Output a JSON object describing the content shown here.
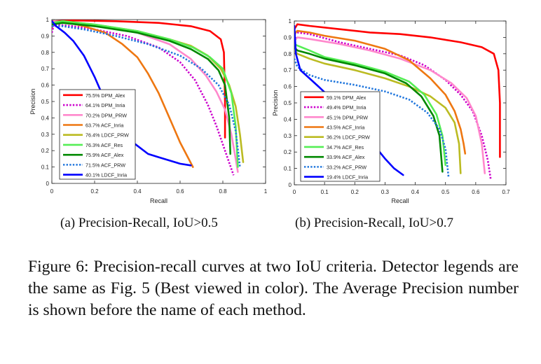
{
  "chart_data": [
    {
      "type": "line",
      "xlabel": "Recall",
      "ylabel": "Precision",
      "xlim": [
        0,
        1
      ],
      "ylim": [
        0,
        1
      ],
      "xticks": [
        "0",
        "0.2",
        "0.4",
        "0.6",
        "0.8",
        "1"
      ],
      "yticks": [
        "0",
        "0.1",
        "0.2",
        "0.3",
        "0.4",
        "0.5",
        "0.6",
        "0.7",
        "0.8",
        "0.9",
        "1"
      ],
      "legend_position": "bottom-left",
      "series": [
        {
          "name": "75.5% DPM_Alex",
          "color": "#ff0000",
          "dash": "solid",
          "points": [
            [
              0,
              0.95
            ],
            [
              0.005,
              0.99
            ],
            [
              0.1,
              0.995
            ],
            [
              0.3,
              0.99
            ],
            [
              0.5,
              0.98
            ],
            [
              0.65,
              0.96
            ],
            [
              0.74,
              0.93
            ],
            [
              0.79,
              0.88
            ],
            [
              0.805,
              0.8
            ],
            [
              0.81,
              0.5
            ],
            [
              0.81,
              0.28
            ]
          ]
        },
        {
          "name": "64.1% DPM_Inria",
          "color": "#cc00cc",
          "dash": "dot",
          "points": [
            [
              0,
              0.92
            ],
            [
              0.01,
              0.97
            ],
            [
              0.1,
              0.96
            ],
            [
              0.2,
              0.94
            ],
            [
              0.35,
              0.9
            ],
            [
              0.5,
              0.83
            ],
            [
              0.6,
              0.74
            ],
            [
              0.67,
              0.63
            ],
            [
              0.73,
              0.48
            ],
            [
              0.77,
              0.35
            ],
            [
              0.81,
              0.2
            ],
            [
              0.85,
              0.05
            ]
          ]
        },
        {
          "name": "70.2% DPM_PRW",
          "color": "#ff88cc",
          "dash": "solid",
          "points": [
            [
              0,
              0.96
            ],
            [
              0.01,
              0.99
            ],
            [
              0.1,
              0.98
            ],
            [
              0.25,
              0.96
            ],
            [
              0.4,
              0.92
            ],
            [
              0.55,
              0.85
            ],
            [
              0.65,
              0.76
            ],
            [
              0.72,
              0.66
            ],
            [
              0.77,
              0.56
            ],
            [
              0.81,
              0.45
            ],
            [
              0.84,
              0.3
            ],
            [
              0.86,
              0.15
            ],
            [
              0.87,
              0.07
            ]
          ]
        },
        {
          "name": "63.7% ACF_Inria",
          "color": "#ee7711",
          "dash": "solid",
          "points": [
            [
              0,
              0.98
            ],
            [
              0.05,
              0.99
            ],
            [
              0.15,
              0.96
            ],
            [
              0.25,
              0.92
            ],
            [
              0.33,
              0.85
            ],
            [
              0.4,
              0.77
            ],
            [
              0.45,
              0.67
            ],
            [
              0.5,
              0.55
            ],
            [
              0.55,
              0.4
            ],
            [
              0.6,
              0.25
            ],
            [
              0.64,
              0.15
            ],
            [
              0.66,
              0.1
            ]
          ]
        },
        {
          "name": "76.4% LDCF_PRW",
          "color": "#bbbb22",
          "dash": "solid",
          "points": [
            [
              0,
              0.97
            ],
            [
              0.05,
              0.99
            ],
            [
              0.2,
              0.97
            ],
            [
              0.4,
              0.93
            ],
            [
              0.55,
              0.88
            ],
            [
              0.65,
              0.84
            ],
            [
              0.73,
              0.78
            ],
            [
              0.79,
              0.7
            ],
            [
              0.83,
              0.6
            ],
            [
              0.86,
              0.47
            ],
            [
              0.88,
              0.3
            ],
            [
              0.895,
              0.13
            ]
          ]
        },
        {
          "name": "76.3% ACF_Res",
          "color": "#55ee55",
          "dash": "solid",
          "points": [
            [
              0,
              0.98
            ],
            [
              0.05,
              0.99
            ],
            [
              0.2,
              0.97
            ],
            [
              0.4,
              0.93
            ],
            [
              0.55,
              0.88
            ],
            [
              0.66,
              0.83
            ],
            [
              0.74,
              0.77
            ],
            [
              0.8,
              0.7
            ],
            [
              0.84,
              0.55
            ],
            [
              0.86,
              0.35
            ],
            [
              0.87,
              0.1
            ]
          ]
        },
        {
          "name": "75.9% ACF_Alex",
          "color": "#008800",
          "dash": "solid",
          "points": [
            [
              0,
              0.97
            ],
            [
              0.05,
              0.98
            ],
            [
              0.2,
              0.96
            ],
            [
              0.4,
              0.92
            ],
            [
              0.55,
              0.87
            ],
            [
              0.65,
              0.82
            ],
            [
              0.73,
              0.76
            ],
            [
              0.78,
              0.69
            ],
            [
              0.81,
              0.6
            ],
            [
              0.83,
              0.4
            ],
            [
              0.835,
              0.18
            ]
          ]
        },
        {
          "name": "71.5% ACF_PRW",
          "color": "#2277dd",
          "dash": "dot",
          "points": [
            [
              0,
              0.96
            ],
            [
              0.05,
              0.96
            ],
            [
              0.15,
              0.94
            ],
            [
              0.3,
              0.9
            ],
            [
              0.45,
              0.85
            ],
            [
              0.6,
              0.78
            ],
            [
              0.7,
              0.7
            ],
            [
              0.78,
              0.6
            ],
            [
              0.83,
              0.48
            ],
            [
              0.86,
              0.32
            ],
            [
              0.88,
              0.1
            ]
          ]
        },
        {
          "name": "40.1% LDCF_Inria",
          "color": "#0000ff",
          "dash": "solid",
          "points": [
            [
              0,
              0.99
            ],
            [
              0.02,
              0.96
            ],
            [
              0.06,
              0.92
            ],
            [
              0.1,
              0.87
            ],
            [
              0.15,
              0.78
            ],
            [
              0.2,
              0.65
            ],
            [
              0.25,
              0.5
            ],
            [
              0.3,
              0.38
            ],
            [
              0.35,
              0.28
            ],
            [
              0.4,
              0.23
            ],
            [
              0.45,
              0.18
            ],
            [
              0.5,
              0.16
            ],
            [
              0.55,
              0.14
            ],
            [
              0.6,
              0.12
            ],
            [
              0.65,
              0.11
            ]
          ]
        }
      ]
    },
    {
      "type": "line",
      "xlabel": "Recall",
      "ylabel": "Precision",
      "xlim": [
        0,
        0.7
      ],
      "ylim": [
        0,
        1
      ],
      "xticks": [
        "0",
        "0.1",
        "0.2",
        "0.3",
        "0.4",
        "0.5",
        "0.6",
        "0.7"
      ],
      "yticks": [
        "0",
        "0.1",
        "0.2",
        "0.3",
        "0.4",
        "0.5",
        "0.6",
        "0.7",
        "0.8",
        "0.9",
        "1"
      ],
      "legend_position": "bottom-left",
      "series": [
        {
          "name": "59.1% DPM_Alex",
          "color": "#ff0000",
          "dash": "solid",
          "points": [
            [
              0,
              0.95
            ],
            [
              0.01,
              0.98
            ],
            [
              0.05,
              0.97
            ],
            [
              0.15,
              0.95
            ],
            [
              0.25,
              0.93
            ],
            [
              0.35,
              0.92
            ],
            [
              0.45,
              0.9
            ],
            [
              0.55,
              0.87
            ],
            [
              0.62,
              0.84
            ],
            [
              0.66,
              0.8
            ],
            [
              0.675,
              0.7
            ],
            [
              0.68,
              0.5
            ],
            [
              0.68,
              0.17
            ]
          ]
        },
        {
          "name": "49.4% DPM_Inria",
          "color": "#cc00cc",
          "dash": "dot",
          "points": [
            [
              0,
              0.92
            ],
            [
              0.01,
              0.93
            ],
            [
              0.05,
              0.92
            ],
            [
              0.15,
              0.87
            ],
            [
              0.25,
              0.83
            ],
            [
              0.35,
              0.79
            ],
            [
              0.43,
              0.73
            ],
            [
              0.5,
              0.64
            ],
            [
              0.55,
              0.55
            ],
            [
              0.59,
              0.45
            ],
            [
              0.62,
              0.3
            ],
            [
              0.64,
              0.15
            ],
            [
              0.65,
              0.03
            ]
          ]
        },
        {
          "name": "45.1% DPM_PRW",
          "color": "#ff88cc",
          "dash": "solid",
          "points": [
            [
              0,
              0.88
            ],
            [
              0.01,
              0.9
            ],
            [
              0.05,
              0.89
            ],
            [
              0.15,
              0.86
            ],
            [
              0.25,
              0.82
            ],
            [
              0.35,
              0.77
            ],
            [
              0.45,
              0.7
            ],
            [
              0.52,
              0.62
            ],
            [
              0.57,
              0.53
            ],
            [
              0.6,
              0.42
            ],
            [
              0.62,
              0.25
            ],
            [
              0.63,
              0.07
            ]
          ]
        },
        {
          "name": "43.5% ACF_Inria",
          "color": "#ee7711",
          "dash": "solid",
          "points": [
            [
              0,
              0.92
            ],
            [
              0.01,
              0.94
            ],
            [
              0.05,
              0.93
            ],
            [
              0.1,
              0.91
            ],
            [
              0.2,
              0.88
            ],
            [
              0.3,
              0.83
            ],
            [
              0.38,
              0.76
            ],
            [
              0.45,
              0.65
            ],
            [
              0.5,
              0.55
            ],
            [
              0.53,
              0.45
            ],
            [
              0.55,
              0.34
            ],
            [
              0.56,
              0.25
            ],
            [
              0.565,
              0.19
            ]
          ]
        },
        {
          "name": "36.2% LDCF_PRW",
          "color": "#bbbb22",
          "dash": "solid",
          "points": [
            [
              0,
              0.82
            ],
            [
              0.01,
              0.8
            ],
            [
              0.05,
              0.77
            ],
            [
              0.1,
              0.74
            ],
            [
              0.2,
              0.7
            ],
            [
              0.3,
              0.65
            ],
            [
              0.38,
              0.6
            ],
            [
              0.45,
              0.54
            ],
            [
              0.5,
              0.47
            ],
            [
              0.53,
              0.38
            ],
            [
              0.545,
              0.25
            ],
            [
              0.55,
              0.07
            ]
          ]
        },
        {
          "name": "34.7% ACF_Res",
          "color": "#55ee55",
          "dash": "solid",
          "points": [
            [
              0,
              0.86
            ],
            [
              0.01,
              0.85
            ],
            [
              0.05,
              0.82
            ],
            [
              0.1,
              0.78
            ],
            [
              0.2,
              0.74
            ],
            [
              0.3,
              0.69
            ],
            [
              0.38,
              0.63
            ],
            [
              0.43,
              0.55
            ],
            [
              0.47,
              0.43
            ],
            [
              0.49,
              0.3
            ],
            [
              0.5,
              0.12
            ]
          ]
        },
        {
          "name": "33.9% ACF_Alex",
          "color": "#008800",
          "dash": "solid",
          "points": [
            [
              0,
              0.84
            ],
            [
              0.01,
              0.82
            ],
            [
              0.05,
              0.8
            ],
            [
              0.1,
              0.77
            ],
            [
              0.2,
              0.73
            ],
            [
              0.3,
              0.68
            ],
            [
              0.37,
              0.62
            ],
            [
              0.42,
              0.54
            ],
            [
              0.46,
              0.42
            ],
            [
              0.48,
              0.3
            ],
            [
              0.49,
              0.08
            ]
          ]
        },
        {
          "name": "33.2% ACF_PRW",
          "color": "#2277dd",
          "dash": "dot",
          "points": [
            [
              0,
              0.77
            ],
            [
              0.01,
              0.72
            ],
            [
              0.05,
              0.67
            ],
            [
              0.1,
              0.64
            ],
            [
              0.2,
              0.61
            ],
            [
              0.3,
              0.57
            ],
            [
              0.38,
              0.52
            ],
            [
              0.44,
              0.44
            ],
            [
              0.48,
              0.34
            ],
            [
              0.5,
              0.22
            ],
            [
              0.51,
              0.05
            ]
          ]
        },
        {
          "name": "19.4% LDCF_Inria",
          "color": "#0000ff",
          "dash": "solid",
          "points": [
            [
              0,
              0.97
            ],
            [
              0.005,
              0.8
            ],
            [
              0.02,
              0.7
            ],
            [
              0.05,
              0.65
            ],
            [
              0.08,
              0.6
            ],
            [
              0.12,
              0.53
            ],
            [
              0.17,
              0.45
            ],
            [
              0.22,
              0.35
            ],
            [
              0.26,
              0.25
            ],
            [
              0.3,
              0.16
            ],
            [
              0.33,
              0.1
            ],
            [
              0.36,
              0.06
            ]
          ]
        }
      ]
    }
  ],
  "subcaptions": [
    "(a) Precision-Recall, IoU>0.5",
    "(b) Precision-Recall, IoU>0.7"
  ],
  "caption": "Figure 6: Precision-recall curves at two IoU criteria. Detector legends are the same as Fig. 5 (Best viewed in color). The Average Precision number is shown before the name of each method."
}
